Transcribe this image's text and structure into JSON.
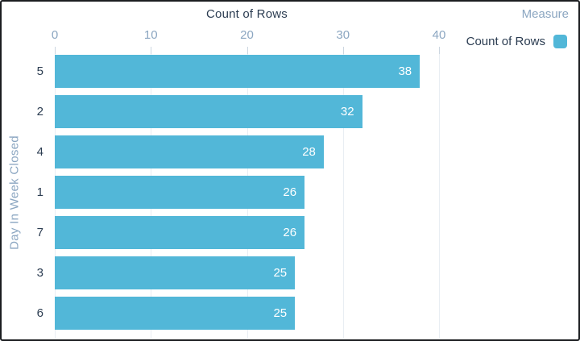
{
  "header": {
    "title": "Count of Rows",
    "measure_label": "Measure"
  },
  "legend": {
    "label": "Count of Rows",
    "swatch_color": "#52B7D8"
  },
  "axes": {
    "y_title": "Day In Week Closed",
    "x_ticks": [
      "0",
      "10",
      "20",
      "30",
      "40"
    ]
  },
  "colors": {
    "bar": "#52B7D8",
    "dark_text": "#2b3c51",
    "muted_axis_text": "#8ba6c1",
    "gridline": "#e9eef3",
    "value_label": "#ffffff",
    "card_border": "#1b1d20"
  },
  "chart_data": {
    "type": "bar",
    "orientation": "horizontal",
    "title": "Count of Rows",
    "xlabel": "Count of Rows",
    "ylabel": "Day In Week Closed",
    "categories": [
      "5",
      "2",
      "4",
      "1",
      "7",
      "3",
      "6"
    ],
    "values": [
      38,
      32,
      28,
      26,
      26,
      25,
      25
    ],
    "xlim": [
      0,
      40
    ],
    "x_ticks": [
      0,
      10,
      20,
      30,
      40
    ],
    "grid": true,
    "legend_position": "top-right",
    "value_labels": "inside-end",
    "series_name": "Count of Rows"
  }
}
